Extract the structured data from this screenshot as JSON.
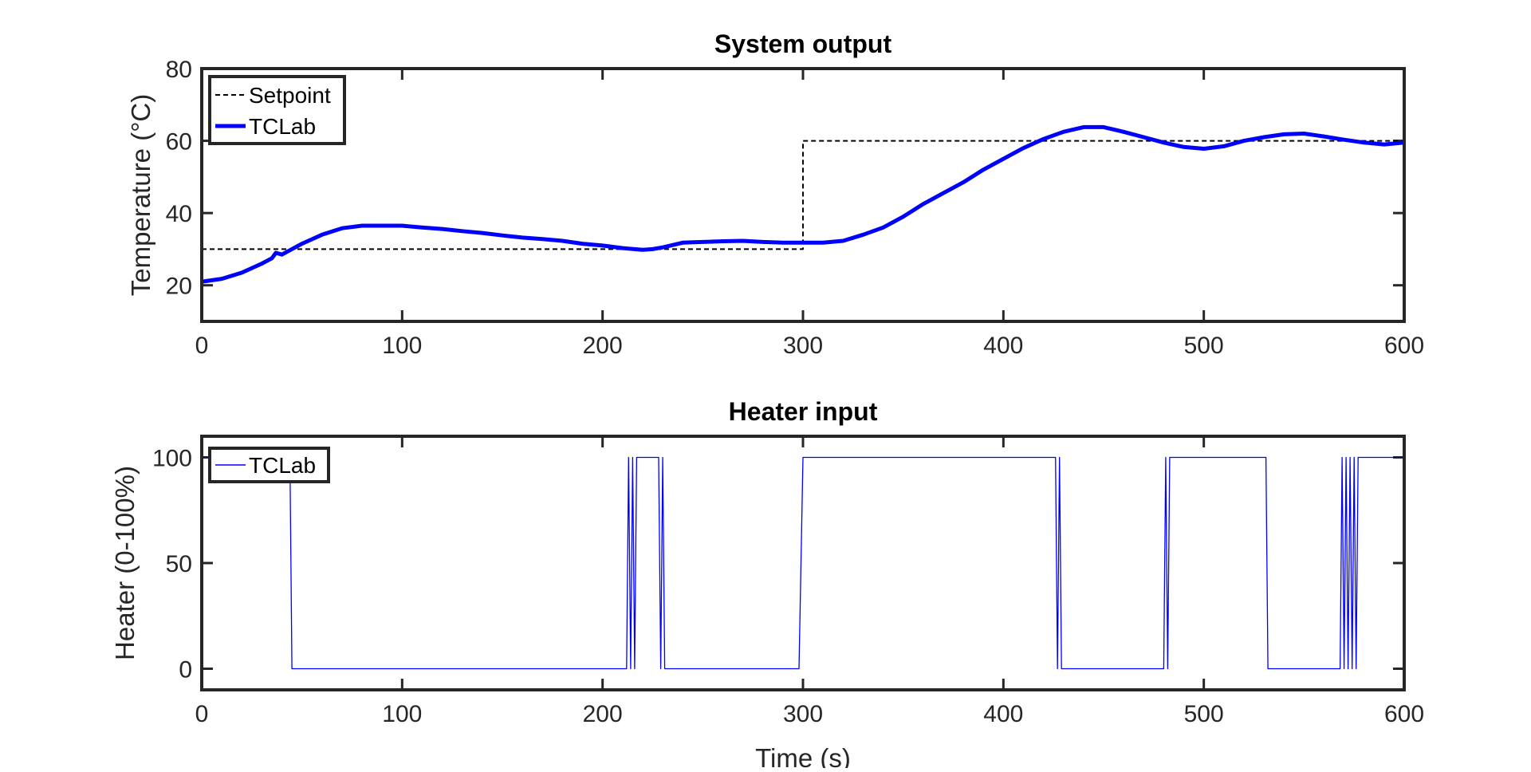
{
  "chart_data": [
    {
      "type": "line",
      "title": "System output",
      "xlabel": "",
      "ylabel": "Temperature (°C)",
      "xlim": [
        0,
        600
      ],
      "ylim": [
        10,
        80
      ],
      "xticks": [
        0,
        100,
        200,
        300,
        400,
        500,
        600
      ],
      "yticks": [
        20,
        40,
        60,
        80
      ],
      "xtick_labels": [
        "0",
        "100",
        "200",
        "300",
        "400",
        "500",
        "600"
      ],
      "ytick_labels": [
        "20",
        "40",
        "60",
        "80"
      ],
      "grid": false,
      "legend_position": "top-left",
      "series": [
        {
          "name": "Setpoint",
          "color": "#000000",
          "style": "dashed",
          "x": [
            0,
            300,
            300,
            600
          ],
          "y": [
            30,
            30,
            60,
            60
          ]
        },
        {
          "name": "TCLab",
          "color": "#0000ff",
          "style": "solid-thick",
          "x": [
            0,
            10,
            20,
            30,
            35,
            37,
            40,
            50,
            60,
            70,
            80,
            90,
            100,
            110,
            120,
            130,
            140,
            150,
            160,
            170,
            180,
            190,
            200,
            210,
            220,
            225,
            230,
            240,
            250,
            260,
            270,
            280,
            290,
            300,
            310,
            320,
            330,
            340,
            350,
            360,
            370,
            380,
            390,
            400,
            410,
            420,
            430,
            440,
            450,
            460,
            470,
            480,
            490,
            500,
            510,
            520,
            530,
            540,
            550,
            560,
            570,
            580,
            590,
            600
          ],
          "y": [
            21,
            21.8,
            23.5,
            26,
            27.5,
            29,
            28.5,
            31.5,
            34,
            35.8,
            36.5,
            36.5,
            36.5,
            36,
            35.6,
            35,
            34.5,
            33.8,
            33.2,
            32.8,
            32.3,
            31.5,
            31,
            30.3,
            29.8,
            30,
            30.5,
            31.8,
            32,
            32.2,
            32.3,
            32,
            31.8,
            31.8,
            31.8,
            32.3,
            34,
            36,
            39,
            42.5,
            45.5,
            48.5,
            52,
            55,
            58,
            60.5,
            62.5,
            63.8,
            63.8,
            62.5,
            61,
            59.5,
            58.3,
            57.8,
            58.5,
            60,
            61,
            61.8,
            62,
            61.2,
            60.3,
            59.5,
            59,
            59.5
          ]
        }
      ]
    },
    {
      "type": "line",
      "title": "Heater input",
      "xlabel": "Time (s)",
      "ylabel": "Heater (0-100%)",
      "xlim": [
        0,
        600
      ],
      "ylim": [
        -10,
        110
      ],
      "xticks": [
        0,
        100,
        200,
        300,
        400,
        500,
        600
      ],
      "yticks": [
        0,
        50,
        100
      ],
      "xtick_labels": [
        "0",
        "100",
        "200",
        "300",
        "400",
        "500",
        "600"
      ],
      "ytick_labels": [
        "0",
        "50",
        "100"
      ],
      "grid": false,
      "legend_position": "top-left",
      "series": [
        {
          "name": "TCLab",
          "color": "#0000ff",
          "style": "solid-thin",
          "x": [
            0,
            44,
            45,
            212,
            213,
            214,
            215,
            216,
            217,
            228,
            229,
            230,
            231,
            298,
            299,
            300,
            426,
            427,
            428,
            429,
            480,
            481,
            482,
            483,
            531,
            532,
            533,
            568,
            569,
            570,
            571,
            572,
            573,
            574,
            575,
            576,
            577,
            600
          ],
          "y": [
            100,
            100,
            0,
            0,
            100,
            0,
            100,
            0,
            100,
            100,
            0,
            100,
            0,
            0,
            50,
            100,
            100,
            0,
            100,
            0,
            0,
            100,
            0,
            100,
            100,
            0,
            0,
            0,
            100,
            0,
            100,
            0,
            100,
            0,
            100,
            0,
            100,
            100
          ]
        }
      ]
    }
  ]
}
